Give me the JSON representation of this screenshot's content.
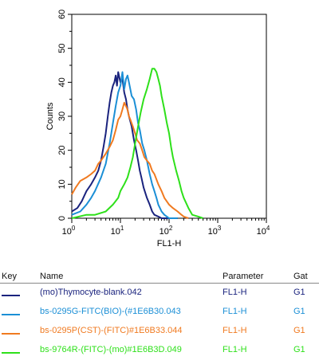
{
  "chart_data": {
    "type": "line",
    "title": "",
    "xlabel": "FL1-H",
    "ylabel": "Counts",
    "x_scale": "log",
    "xlim": [
      1,
      10000
    ],
    "ylim": [
      0,
      60
    ],
    "x_ticks": [
      {
        "value": 1,
        "base": "10",
        "exp": "0"
      },
      {
        "value": 10,
        "base": "10",
        "exp": "1"
      },
      {
        "value": 100,
        "base": "10",
        "exp": "2"
      },
      {
        "value": 1000,
        "base": "10",
        "exp": "3"
      },
      {
        "value": 10000,
        "base": "10",
        "exp": "4"
      }
    ],
    "y_ticks": [
      "0",
      "10",
      "20",
      "30",
      "40",
      "50",
      "60"
    ],
    "series": [
      {
        "name": "(mo)Thymocyte-blank.042",
        "color": "#1a237e",
        "x": [
          1,
          1.3,
          1.6,
          2,
          2.5,
          3,
          3.5,
          4,
          4.5,
          5,
          5.5,
          6,
          6.5,
          7,
          7.5,
          8,
          8.5,
          9,
          10,
          11,
          12,
          13,
          14,
          15,
          17,
          19,
          21,
          23,
          25,
          27,
          30,
          35,
          40,
          45,
          50,
          60,
          70,
          80,
          100,
          150
        ],
        "y": [
          2,
          3,
          5,
          8,
          10,
          12,
          14,
          17,
          21,
          25,
          30,
          34,
          37,
          39,
          40,
          42,
          39,
          43,
          40,
          41,
          37,
          35,
          32,
          30,
          27,
          23,
          20,
          17,
          14,
          12,
          9,
          6,
          4,
          2,
          1,
          0.5,
          0,
          0,
          0,
          0
        ]
      },
      {
        "name": "bs-0295G-FITC(BIO)-(#1E6B30.043",
        "color": "#1b8fd6",
        "x": [
          1,
          1.5,
          2,
          2.5,
          3,
          4,
          5,
          6,
          7,
          8,
          9,
          10,
          11,
          12,
          13,
          14,
          15,
          17,
          19,
          21,
          23,
          25,
          28,
          31,
          35,
          40,
          45,
          50,
          55,
          60,
          70,
          80,
          90,
          100,
          120,
          150
        ],
        "y": [
          1,
          2,
          4,
          6,
          8,
          12,
          16,
          22,
          28,
          33,
          37,
          39,
          43,
          38,
          41,
          42,
          40,
          36,
          35,
          32,
          28,
          26,
          22,
          20,
          17,
          13,
          10,
          8,
          6,
          4,
          2,
          1,
          0.5,
          0,
          0,
          0
        ]
      },
      {
        "name": "bs-0295P(CST)-(FITC)#1E6B33.044",
        "color": "#f07a20",
        "x": [
          1,
          1.2,
          1.5,
          2,
          2.5,
          3,
          3.5,
          4,
          5,
          6,
          7,
          8,
          9,
          10,
          11,
          12,
          13,
          14,
          15,
          16,
          18,
          20,
          22,
          25,
          28,
          31,
          35,
          40,
          45,
          50,
          60,
          70,
          80,
          100,
          120,
          150,
          180,
          200,
          250
        ],
        "y": [
          7,
          9,
          11,
          12,
          13,
          14,
          16,
          17,
          19,
          21,
          23,
          26,
          29,
          30,
          32,
          34,
          33,
          32,
          30,
          29,
          27,
          25,
          23,
          22,
          20,
          18,
          17,
          16,
          14,
          13,
          10,
          8,
          6,
          4,
          3,
          2,
          1,
          0.5,
          0
        ]
      },
      {
        "name": "bs-9764R-(FITC)-(mo)#1E6B3D.049",
        "color": "#2ee01a",
        "x": [
          1,
          2,
          3,
          5,
          7,
          9,
          10,
          12,
          14,
          16,
          18,
          20,
          23,
          26,
          30,
          35,
          40,
          45,
          50,
          55,
          60,
          65,
          70,
          80,
          90,
          100,
          110,
          120,
          140,
          160,
          180,
          200,
          250,
          300,
          400,
          500
        ],
        "y": [
          0,
          1,
          1,
          2,
          4,
          6,
          8,
          10,
          12,
          15,
          18,
          22,
          27,
          31,
          35,
          38,
          41,
          44,
          44,
          43,
          41,
          39,
          36,
          32,
          28,
          25,
          21,
          18,
          14,
          11,
          8,
          6,
          3,
          1,
          0.5,
          0
        ]
      }
    ]
  },
  "legend": {
    "headers": {
      "key": "Key",
      "name": "Name",
      "parameter": "Parameter",
      "gate": "Gat"
    },
    "rows": [
      {
        "name": "(mo)Thymocyte-blank.042",
        "parameter": "FL1-H",
        "gate": "G1",
        "color": "#1a237e"
      },
      {
        "name": "bs-0295G-FITC(BIO)-(#1E6B30.043",
        "parameter": "FL1-H",
        "gate": "G1",
        "color": "#1b8fd6"
      },
      {
        "name": "bs-0295P(CST)-(FITC)#1E6B33.044",
        "parameter": "FL1-H",
        "gate": "G1",
        "color": "#f07a20"
      },
      {
        "name": "bs-9764R-(FITC)-(mo)#1E6B3D.049",
        "parameter": "FL1-H",
        "gate": "G1",
        "color": "#2ee01a"
      }
    ]
  }
}
